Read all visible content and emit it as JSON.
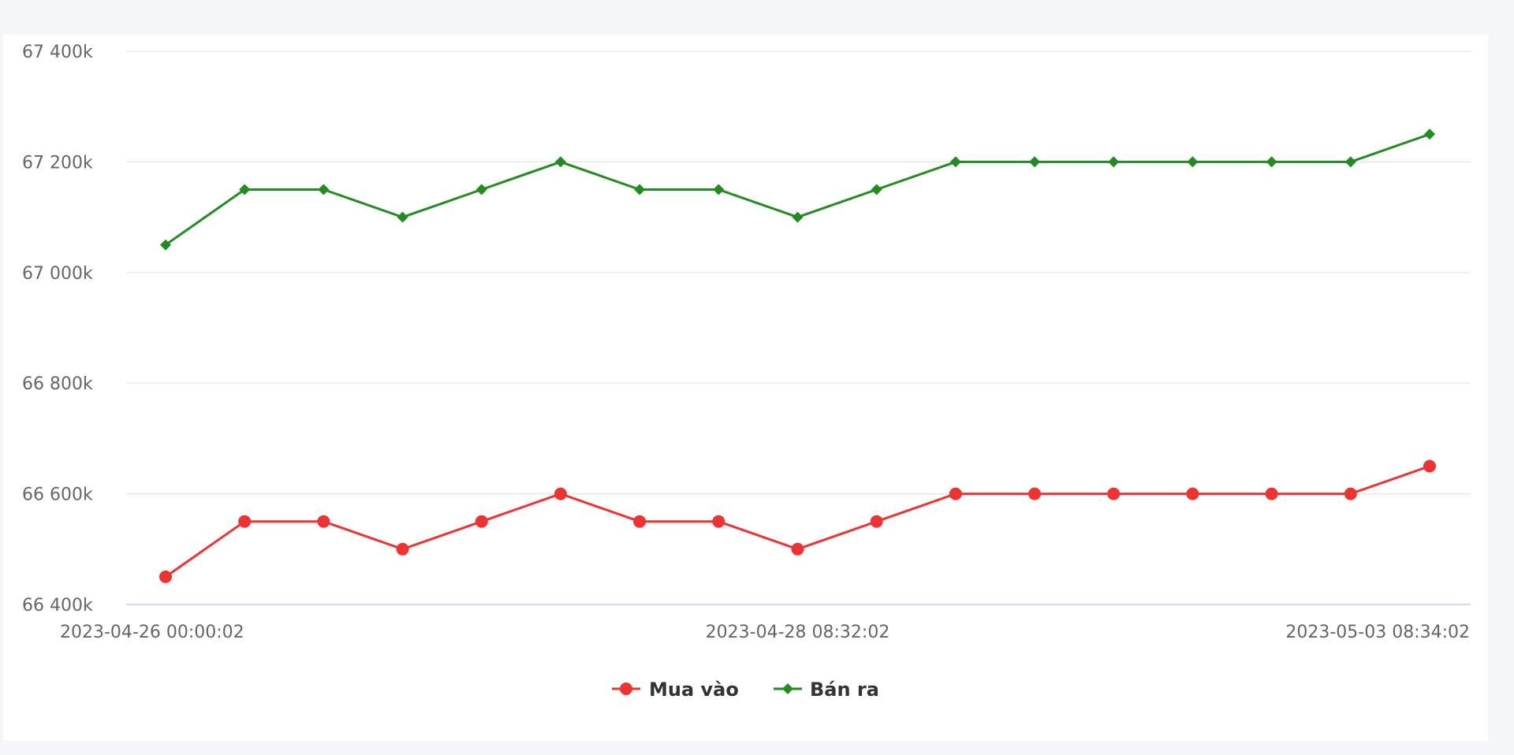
{
  "chart_data": {
    "type": "line",
    "title": "",
    "xlabel": "",
    "ylabel": "",
    "ylim": [
      66400,
      67400
    ],
    "yticks": [
      {
        "value": 67400,
        "label": "67 400k"
      },
      {
        "value": 67200,
        "label": "67 200k"
      },
      {
        "value": 67000,
        "label": "67 000k"
      },
      {
        "value": 66800,
        "label": "66 800k"
      },
      {
        "value": 66600,
        "label": "66 600k"
      },
      {
        "value": 66400,
        "label": "66 400k"
      }
    ],
    "x_tick_labels": [
      {
        "index": 0,
        "label": "2023-04-26 00:00:02"
      },
      {
        "index": 8,
        "label": "2023-04-28 08:32:02"
      },
      {
        "index": 16,
        "label": "2023-05-03 08:34:02"
      }
    ],
    "grid": true,
    "legend_position": "bottom",
    "series": [
      {
        "name": "Mua vào",
        "color": "#ee3333",
        "marker": "circle",
        "values": [
          66450,
          66550,
          66550,
          66500,
          66550,
          66600,
          66550,
          66550,
          66500,
          66550,
          66600,
          66600,
          66600,
          66600,
          66600,
          66600,
          66650
        ]
      },
      {
        "name": "Bán ra",
        "color": "#228b22",
        "marker": "diamond",
        "values": [
          67050,
          67150,
          67150,
          67100,
          67150,
          67200,
          67150,
          67150,
          67100,
          67150,
          67200,
          67200,
          67200,
          67200,
          67200,
          67200,
          67250
        ]
      }
    ]
  }
}
